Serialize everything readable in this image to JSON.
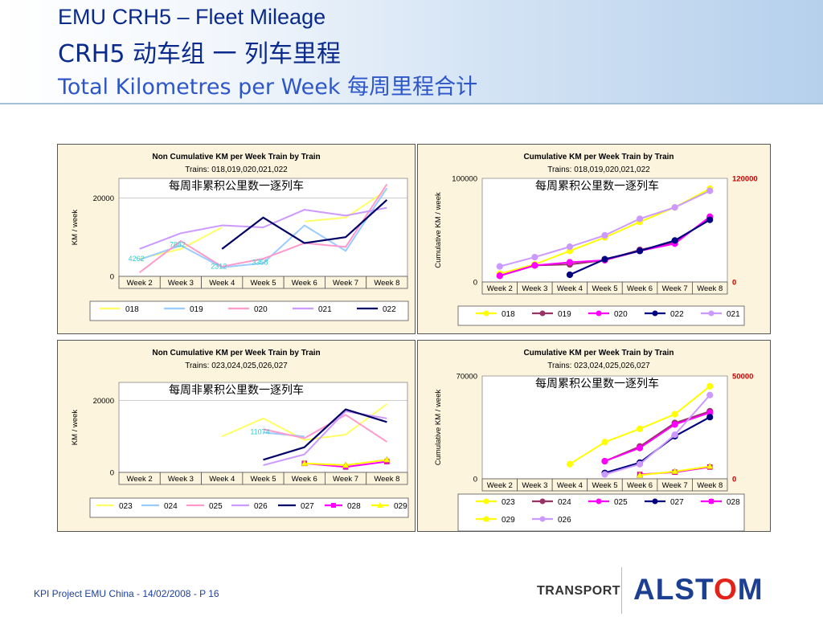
{
  "header": {
    "title_line1": "EMU CRH5 – Fleet Mileage",
    "title_line2": "CRH5 动车组 一 列车里程",
    "title_line3": "Total Kilometres per Week 每周里程合计"
  },
  "footer": {
    "text": "KPI Project EMU China - 14/02/2008 - P 16",
    "division": "TRANSPORT",
    "brand_pre": "ALST",
    "brand_o": "O",
    "brand_post": "M"
  },
  "colors": {
    "header_text": "#0a2a8c",
    "subtitle_text": "#2d56c8",
    "brand": "#1d3f91",
    "brand_accent": "#e2231a",
    "panel_bg": "#fdf4de"
  },
  "chart_data": [
    {
      "type": "line",
      "title": "Non Cumulative KM per Week Train by Train",
      "subtitle": "Trains: 018,019,020,021,022",
      "annotation": "每周非累积公里数一逐列车",
      "ylabel": "KM / week",
      "ylim": [
        0,
        25000
      ],
      "y_ticks": [
        0,
        20000
      ],
      "categories": [
        "Week 2",
        "Week 3",
        "Week 4",
        "Week 5",
        "Week 6",
        "Week 7",
        "Week 8"
      ],
      "series": [
        {
          "name": "018",
          "color": "#ffff66",
          "values": [
            4500,
            7000,
            12500,
            null,
            14000,
            15000,
            22000
          ]
        },
        {
          "name": "019",
          "color": "#99ccff",
          "values": [
            4262,
            7882,
            2312,
            3358,
            13000,
            6500,
            22500
          ]
        },
        {
          "name": "020",
          "color": "#ff99cc",
          "values": [
            1000,
            9000,
            2500,
            4500,
            8500,
            7500,
            23500
          ]
        },
        {
          "name": "021",
          "color": "#cc99ff",
          "values": [
            7000,
            11000,
            13000,
            12500,
            17000,
            15500,
            17500
          ]
        },
        {
          "name": "022",
          "color": "#000066",
          "values": [
            null,
            null,
            7000,
            15000,
            8500,
            10000,
            19500
          ]
        }
      ],
      "data_labels": [
        {
          "series": "019",
          "index": 0,
          "text": "4262"
        },
        {
          "series": "019",
          "index": 1,
          "text": "7882"
        },
        {
          "series": "019",
          "index": 2,
          "text": "2312"
        },
        {
          "series": "019",
          "index": 3,
          "text": "3358"
        }
      ],
      "legend": "bottom"
    },
    {
      "type": "line",
      "title": "Cumulative KM per Week Train by Train",
      "subtitle": "Trains: 018,019,020,021,022",
      "annotation": "每周累积公里数一逐列车",
      "ylabel": "Cumulative KM / week",
      "ylim": [
        0,
        100000
      ],
      "y_ticks": [
        0,
        100000
      ],
      "y2_ticks": [
        "0",
        "120000"
      ],
      "categories": [
        "Week 2",
        "Week 3",
        "Week 4",
        "Week 5",
        "Week 6",
        "Week 7",
        "Week 8"
      ],
      "series": [
        {
          "name": "018",
          "color": "#ffff00",
          "values": [
            8000,
            17000,
            30000,
            43000,
            58000,
            72000,
            90000
          ]
        },
        {
          "name": "019",
          "color": "#993366",
          "values": [
            6000,
            16000,
            17000,
            21000,
            31000,
            38000,
            62000
          ]
        },
        {
          "name": "020",
          "color": "#ff00ff",
          "values": [
            6000,
            16000,
            19000,
            21000,
            30000,
            37000,
            63000
          ]
        },
        {
          "name": "022",
          "color": "#000080",
          "values": [
            null,
            null,
            7000,
            22000,
            30000,
            40000,
            60000
          ]
        },
        {
          "name": "021",
          "color": "#cc99ff",
          "values": [
            15000,
            24000,
            34000,
            45000,
            61000,
            72000,
            88000
          ]
        }
      ],
      "legend": "bottom"
    },
    {
      "type": "line",
      "title": "Non Cumulative KM per Week Train by Train",
      "subtitle": "Trains: 023,024,025,026,027",
      "annotation": "每周非累积公里数一逐列车",
      "ylabel": "KM / week",
      "ylim": [
        0,
        25000
      ],
      "y_ticks": [
        0,
        20000
      ],
      "categories": [
        "Week 2",
        "Week 3",
        "Week 4",
        "Week 5",
        "Week 6",
        "Week 7",
        "Week 8"
      ],
      "series": [
        {
          "name": "023",
          "color": "#ffff66",
          "values": [
            null,
            null,
            10000,
            15000,
            9000,
            10500,
            19000
          ]
        },
        {
          "name": "024",
          "color": "#99ccff",
          "values": [
            null,
            null,
            null,
            11074,
            10000,
            null,
            null
          ]
        },
        {
          "name": "025",
          "color": "#ff99cc",
          "values": [
            null,
            null,
            null,
            12000,
            9500,
            16000,
            8500
          ]
        },
        {
          "name": "026",
          "color": "#cc99ff",
          "values": [
            null,
            null,
            null,
            2000,
            5000,
            17000,
            15000
          ]
        },
        {
          "name": "027",
          "color": "#000066",
          "values": [
            null,
            null,
            null,
            3500,
            7000,
            17500,
            14000
          ]
        },
        {
          "name": "028",
          "color": "#ff00ff",
          "values": [
            null,
            null,
            null,
            null,
            2500,
            1500,
            3000
          ]
        },
        {
          "name": "029",
          "color": "#ffff00",
          "values": [
            null,
            null,
            null,
            null,
            2500,
            2000,
            3500
          ]
        }
      ],
      "data_labels": [
        {
          "series": "024",
          "index": 3,
          "text": "11074"
        }
      ],
      "legend": "bottom"
    },
    {
      "type": "line",
      "title": "Cumulative KM per Week Train by Train",
      "subtitle": "Trains: 023,024,025,026,027",
      "annotation": "每周累积公里数一逐列车",
      "ylabel": "Cumulative KM / week",
      "ylim": [
        0,
        70000
      ],
      "y_ticks": [
        0,
        70000
      ],
      "y2_ticks": [
        "0",
        "50000"
      ],
      "categories": [
        "Week 2",
        "Week 3",
        "Week 4",
        "Week 5",
        "Week 6",
        "Week 7",
        "Week 8"
      ],
      "series": [
        {
          "name": "023",
          "color": "#ffff00",
          "values": [
            null,
            null,
            10000,
            25000,
            34000,
            44000,
            63000
          ]
        },
        {
          "name": "024",
          "color": "#993366",
          "values": [
            null,
            null,
            null,
            12000,
            22000,
            38000,
            46000
          ]
        },
        {
          "name": "025",
          "color": "#ff00ff",
          "values": [
            null,
            null,
            null,
            12000,
            21000,
            37000,
            45000
          ]
        },
        {
          "name": "027",
          "color": "#000080",
          "values": [
            null,
            null,
            null,
            4000,
            11000,
            29000,
            42000
          ]
        },
        {
          "name": "028",
          "color": "#ff00ff",
          "values": [
            null,
            null,
            null,
            null,
            3000,
            4500,
            8000
          ]
        },
        {
          "name": "029",
          "color": "#ffff00",
          "values": [
            null,
            null,
            null,
            null,
            2500,
            5000,
            8500
          ]
        },
        {
          "name": "026",
          "color": "#cc99ff",
          "values": [
            null,
            null,
            null,
            3000,
            10000,
            30000,
            57000
          ]
        }
      ],
      "legend": "bottom"
    }
  ]
}
